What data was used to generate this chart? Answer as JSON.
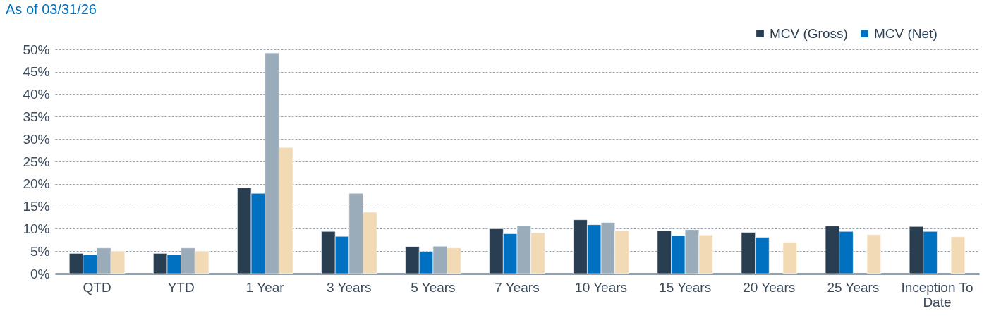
{
  "chart_data": {
    "type": "bar",
    "title": "As of 03/31/26",
    "categories": [
      "QTD",
      "YTD",
      "1 Year",
      "3 Years",
      "5 Years",
      "7 Years",
      "10 Years",
      "15 Years",
      "20 Years",
      "25 Years",
      "Inception To Date"
    ],
    "series": [
      {
        "name": "MCV (Gross)",
        "color": "#2a3e52",
        "values": [
          4.5,
          4.5,
          19.1,
          9.4,
          6.0,
          10.0,
          12.0,
          9.6,
          9.2,
          10.6,
          10.5
        ]
      },
      {
        "name": "MCV (Net)",
        "color": "#0070c0",
        "values": [
          4.2,
          4.2,
          17.9,
          8.3,
          4.9,
          8.9,
          10.9,
          8.5,
          8.1,
          9.4,
          9.4
        ]
      },
      {
        "color": "#9aabb9",
        "values": [
          5.7,
          5.7,
          49.2,
          17.9,
          6.1,
          10.7,
          11.4,
          9.8,
          null,
          null,
          null
        ]
      },
      {
        "color": "#f2dab5",
        "values": [
          5.0,
          5.0,
          28.1,
          13.7,
          5.7,
          9.1,
          9.6,
          8.6,
          7.0,
          8.7,
          8.2
        ]
      }
    ],
    "ylim": [
      0,
      50
    ],
    "yticks": [
      {
        "value": 0,
        "label": "0%"
      },
      {
        "value": 5,
        "label": "5%"
      },
      {
        "value": 10,
        "label": "10%"
      },
      {
        "value": 15,
        "label": "15%"
      },
      {
        "value": 20,
        "label": "20%"
      },
      {
        "value": 25,
        "label": "25%"
      },
      {
        "value": 30,
        "label": "30%"
      },
      {
        "value": 35,
        "label": "35%"
      },
      {
        "value": 40,
        "label": "40%"
      },
      {
        "value": 45,
        "label": "45%"
      },
      {
        "value": 50,
        "label": "50%"
      }
    ],
    "grid": "y",
    "legend": "top right"
  }
}
